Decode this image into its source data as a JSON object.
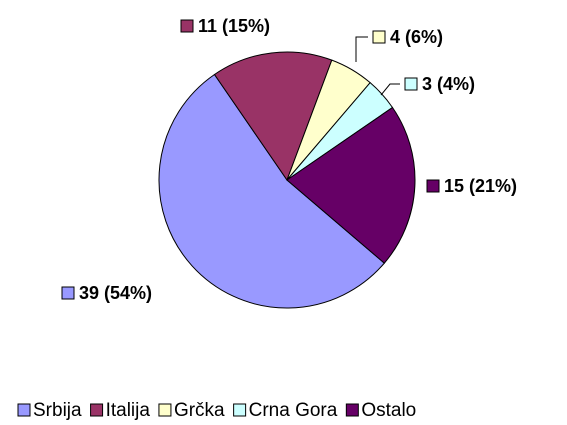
{
  "chart_data": {
    "type": "pie",
    "categories": [
      "Srbija",
      "Italija",
      "Grčka",
      "Crna Gora",
      "Ostalo"
    ],
    "values": [
      39,
      11,
      4,
      3,
      15
    ],
    "value_labels": [
      "39 (54%)",
      "11 (15%)",
      "4 (6%)",
      "3 (4%)",
      "15 (21%)"
    ],
    "colors": [
      "#9999ff",
      "#993366",
      "#ffffcc",
      "#ccffff",
      "#660066"
    ],
    "legend": "bottom"
  }
}
